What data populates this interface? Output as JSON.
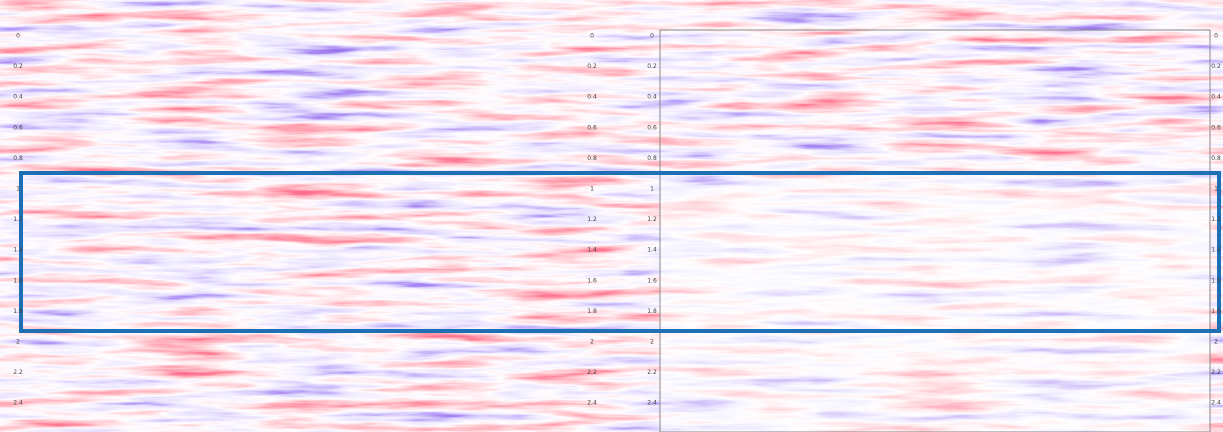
{
  "panels": [
    {
      "time_labels": [
        "0",
        "0.2",
        "0.4",
        "0.6",
        "0.8",
        "1",
        "1.2",
        "1.4",
        "1.6",
        "1.8",
        "2",
        "2.2",
        "2.4"
      ]
    },
    {
      "time_labels": [
        "0",
        "0.2",
        "0.4",
        "0.6",
        "0.8",
        "1",
        "1.2",
        "1.4",
        "1.6",
        "1.8",
        "2",
        "2.2",
        "2.4"
      ]
    }
  ]
}
